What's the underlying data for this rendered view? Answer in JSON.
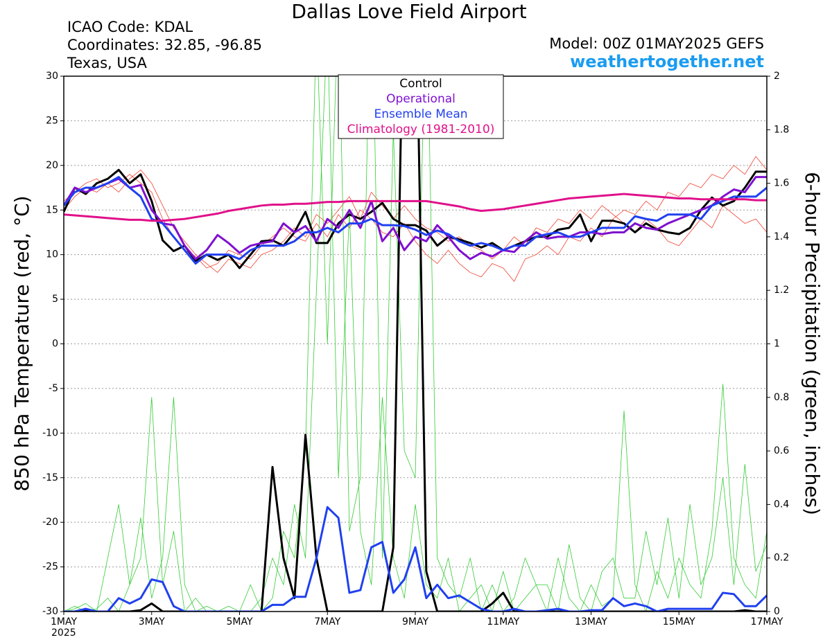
{
  "chart_data": {
    "type": "line",
    "title": "Dallas Love Field Airport",
    "station_lines": [
      "ICAO Code: KDAL",
      "Coordinates: 32.85, -96.85",
      "Texas, USA"
    ],
    "model": "Model: 00Z 01MAY2025 GEFS",
    "source": "weathertogether.net",
    "ylabel": "850 hPa Temperature (red, °C)",
    "y2label": "6-hour Precipitation (green, inches)",
    "year_label": "2025",
    "legend": "top",
    "grid": true,
    "xlim": [
      0,
      16
    ],
    "xticks": [
      {
        "value": 0,
        "label": "1MAY"
      },
      {
        "value": 2,
        "label": "3MAY"
      },
      {
        "value": 4,
        "label": "5MAY"
      },
      {
        "value": 6,
        "label": "7MAY"
      },
      {
        "value": 8,
        "label": "9MAY"
      },
      {
        "value": 10,
        "label": "11MAY"
      },
      {
        "value": 12,
        "label": "13MAY"
      },
      {
        "value": 14,
        "label": "15MAY"
      },
      {
        "value": 16,
        "label": "17MAY"
      }
    ],
    "ylim": [
      -30,
      30
    ],
    "yticks": [
      -30,
      -25,
      -20,
      -15,
      -10,
      -5,
      0,
      5,
      10,
      15,
      20,
      25,
      30
    ],
    "y2lim": [
      0,
      2
    ],
    "y2ticks": [
      0,
      0.2,
      0.4,
      0.6,
      0.8,
      1,
      1.2,
      1.4,
      1.6,
      1.8,
      2
    ],
    "x": [
      0,
      0.25,
      0.5,
      0.75,
      1,
      1.25,
      1.5,
      1.75,
      2,
      2.25,
      2.5,
      2.75,
      3,
      3.25,
      3.5,
      3.75,
      4,
      4.25,
      4.5,
      4.75,
      5,
      5.25,
      5.5,
      5.75,
      6,
      6.25,
      6.5,
      6.75,
      7,
      7.25,
      7.5,
      7.75,
      8,
      8.25,
      8.5,
      8.75,
      9,
      9.25,
      9.5,
      9.75,
      10,
      10.25,
      10.5,
      10.75,
      11,
      11.25,
      11.5,
      11.75,
      12,
      12.25,
      12.5,
      12.75,
      13,
      13.25,
      13.5,
      13.75,
      14,
      14.25,
      14.5,
      14.75,
      15,
      15.25,
      15.5,
      15.75,
      16
    ],
    "members": [
      {
        "color": "#f04030",
        "values": [
          16,
          17,
          18,
          18.5,
          17.5,
          18,
          19,
          18,
          17,
          14,
          12,
          10.5,
          9.8,
          8.5,
          9,
          10.5,
          10,
          9.5,
          11,
          12,
          13,
          12,
          11.5,
          13.5,
          12,
          14.5,
          13,
          15,
          14,
          12.5,
          12,
          13.5,
          11.5,
          10,
          9,
          10.5,
          9,
          8,
          7.5,
          9,
          8.5,
          7,
          9.5,
          10,
          11,
          10,
          12,
          11.5,
          13,
          12,
          14,
          15,
          14.5,
          16,
          15,
          17,
          16.5,
          18,
          17.5,
          19,
          18.5,
          20,
          19,
          21,
          19.5
        ]
      },
      {
        "color": "#f04030",
        "values": [
          15,
          16.5,
          17.5,
          17,
          18,
          17,
          18.5,
          19.5,
          18,
          15.5,
          13,
          11.5,
          10,
          9,
          8,
          9.5,
          9,
          8.5,
          10,
          10.5,
          11.5,
          13,
          12,
          14.5,
          13.5,
          15,
          16.5,
          14,
          17,
          15.5,
          14,
          15.5,
          14,
          13,
          12.5,
          11.5,
          12,
          11,
          10.5,
          9.5,
          10.5,
          12,
          11,
          13,
          12.5,
          14,
          13.5,
          15,
          14,
          15.5,
          14.5,
          13.5,
          12.5,
          14,
          13,
          11.5,
          11,
          12.5,
          14,
          13,
          15.5,
          14.5,
          13.5,
          14,
          12.5
        ]
      },
      {
        "color": "#33cc33",
        "axis": "y2",
        "values": [
          0,
          0.02,
          0,
          0.01,
          0.05,
          0,
          0.1,
          0.35,
          0.05,
          0.2,
          0.8,
          0.1,
          0,
          0.02,
          0,
          0,
          0,
          0,
          0.05,
          0.2,
          0.1,
          0.4,
          0.2,
          1.2,
          2.2,
          0.5,
          1.5,
          0.3,
          0.1,
          0.8,
          0.2,
          0.05,
          0.4,
          0.1,
          0.05,
          0.2,
          0,
          0.05,
          0.1,
          0,
          0.15,
          0,
          0.05,
          0.1,
          0,
          0.2,
          0.05,
          0,
          0.1,
          0.02,
          0.05,
          0.75,
          0.1,
          0,
          0.15,
          0.05,
          0.2,
          0.1,
          0.05,
          0.3,
          0.85,
          0.2,
          0.1,
          0.05,
          0.3
        ]
      },
      {
        "color": "#33cc33",
        "axis": "y2",
        "values": [
          0,
          0.01,
          0.03,
          0,
          0.2,
          0.4,
          0.1,
          0.2,
          0.8,
          0.1,
          0.3,
          0,
          0.05,
          0,
          0,
          0.02,
          0,
          0.1,
          0,
          0.05,
          0.3,
          0.2,
          0.6,
          2.2,
          1,
          2.3,
          0.3,
          0.5,
          2.5,
          0.2,
          1.8,
          0.6,
          0.5,
          2.4,
          0.2,
          0.1,
          0.05,
          0.2,
          0,
          0.1,
          0,
          0.05,
          0.2,
          0.1,
          0.1,
          0,
          0.25,
          0.05,
          0,
          0.15,
          0.2,
          0.05,
          0.05,
          0.3,
          0.1,
          0.35,
          0.05,
          0.4,
          0.1,
          0.2,
          0.5,
          0.1,
          0.55,
          0.15,
          0.25
        ]
      }
    ],
    "series": [
      {
        "name": "Control",
        "color": "#000000",
        "values": [
          14.8,
          17.5,
          16.8,
          18,
          18.5,
          19.5,
          18,
          19,
          16,
          11.6,
          10.4,
          11,
          9.3,
          10,
          9.4,
          10,
          8.5,
          10,
          11.5,
          11.6,
          11,
          12.5,
          14.8,
          11.3,
          11.3,
          13.5,
          14.5,
          14,
          14.8,
          15.8,
          14,
          13.3,
          13.3,
          12.7,
          11,
          12,
          11.7,
          11.3,
          10.8,
          11.3,
          10.5,
          11,
          11.5,
          12,
          12,
          12.8,
          13,
          14.5,
          11.5,
          13.8,
          13.8,
          13.5,
          12.5,
          13.5,
          12.8,
          12.5,
          12.3,
          13,
          15,
          16.4,
          15.5,
          16,
          17.5,
          19.3,
          19.3
        ]
      },
      {
        "name": "Operational",
        "color": "#8010d0",
        "values": [
          15.5,
          17.5,
          17,
          17.5,
          18,
          18.5,
          17.5,
          17.8,
          15,
          13.5,
          13.3,
          11,
          9.5,
          10.5,
          12.2,
          11.3,
          10.2,
          11,
          11.3,
          11.5,
          13.5,
          12.5,
          13.2,
          11.5,
          14,
          13,
          15,
          13,
          16,
          11.5,
          13,
          10.5,
          12,
          11.5,
          13.3,
          12,
          10.5,
          9.5,
          10.2,
          9.8,
          10.5,
          10.3,
          11.5,
          12.5,
          11.8,
          12,
          12,
          12.5,
          12.5,
          12.3,
          12.5,
          12.5,
          13.5,
          13,
          12.8,
          13.5,
          14,
          14.5,
          15,
          15.5,
          16.5,
          17.3,
          17,
          18.7,
          18.7
        ]
      },
      {
        "name": "Ensemble Mean",
        "color": "#2040f0",
        "values": [
          15.5,
          17,
          17.5,
          17.5,
          18,
          18.7,
          17.5,
          16.5,
          14,
          13.5,
          12,
          10.5,
          9,
          10,
          10,
          10,
          9.5,
          10.5,
          11,
          11,
          11,
          11.5,
          12.5,
          12.5,
          13,
          12.5,
          13.5,
          13.5,
          14,
          13.3,
          13.3,
          13.2,
          12.8,
          12.2,
          12.7,
          12.3,
          11.5,
          11,
          11.3,
          11,
          10.5,
          11,
          11,
          12,
          12.3,
          12.5,
          12,
          12,
          12.5,
          13,
          13,
          13,
          14.3,
          14,
          13.8,
          14.5,
          14.5,
          14.5,
          14,
          15.5,
          16,
          16.5,
          16.5,
          16.5,
          17.5
        ]
      },
      {
        "name": "Climatology (1981-2010)",
        "color": "#e0108a",
        "values": [
          14.5,
          14.4,
          14.3,
          14.2,
          14.1,
          14,
          13.9,
          13.9,
          13.8,
          13.8,
          13.9,
          14,
          14.2,
          14.4,
          14.6,
          14.9,
          15.1,
          15.3,
          15.5,
          15.6,
          15.6,
          15.7,
          15.7,
          15.8,
          15.9,
          15.9,
          16,
          16,
          16,
          16,
          16,
          16,
          16,
          16,
          15.8,
          15.6,
          15.4,
          15.1,
          14.9,
          15,
          15.1,
          15.3,
          15.5,
          15.7,
          15.9,
          16.1,
          16.3,
          16.4,
          16.5,
          16.6,
          16.7,
          16.8,
          16.7,
          16.6,
          16.5,
          16.4,
          16.3,
          16.3,
          16.2,
          16.2,
          16.2,
          16.2,
          16.2,
          16.1,
          16.1
        ]
      },
      {
        "name": "Control",
        "color": "#000000",
        "axis": "y2",
        "values": [
          0,
          0,
          0.005,
          0,
          0,
          0,
          0,
          0.005,
          0.03,
          0,
          0,
          0,
          0,
          0,
          0,
          0,
          0,
          0,
          0,
          0.54,
          0.2,
          0.05,
          0.66,
          0.2,
          0,
          0,
          0,
          0,
          0,
          0,
          0.24,
          2.5,
          2.5,
          0.15,
          0,
          0,
          0,
          0,
          0,
          0.03,
          0.07,
          0,
          0,
          0,
          0,
          0,
          0,
          0,
          0,
          0,
          0,
          0,
          0,
          0,
          0,
          0,
          0,
          0,
          0,
          0,
          0,
          0,
          0.005,
          0,
          0
        ]
      },
      {
        "name": "Ensemble Mean",
        "color": "#2040f0",
        "axis": "y2",
        "values": [
          0,
          0,
          0.01,
          0,
          0,
          0.05,
          0.03,
          0.05,
          0.12,
          0.11,
          0.02,
          0,
          0,
          0,
          0,
          0,
          0,
          0,
          0,
          0.025,
          0.025,
          0.055,
          0.055,
          0.2,
          0.39,
          0.35,
          0.07,
          0.08,
          0.24,
          0.26,
          0.07,
          0.12,
          0.24,
          0.05,
          0.1,
          0.05,
          0.06,
          0.035,
          0.01,
          0,
          0,
          0.01,
          0,
          0,
          0.005,
          0.01,
          0,
          0,
          0.005,
          0.005,
          0.05,
          0.02,
          0.03,
          0.02,
          0,
          0.01,
          0.01,
          0.01,
          0.01,
          0.01,
          0.07,
          0.065,
          0.02,
          0.02,
          0.06
        ]
      }
    ]
  }
}
